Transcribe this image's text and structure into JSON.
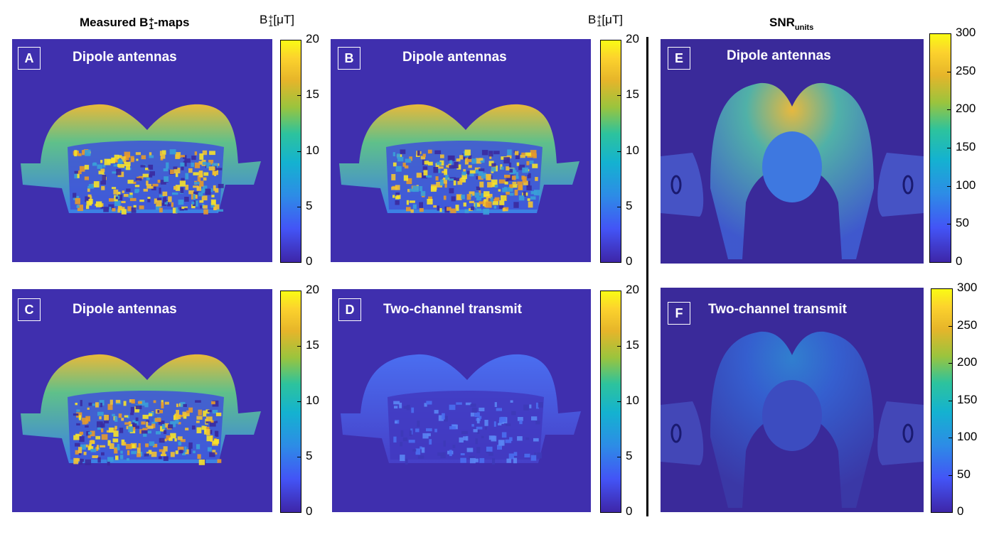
{
  "headers": {
    "left_title_main": "Measured B",
    "left_title_sup": "+",
    "left_title_sub": "1",
    "left_title_suffix": "-maps",
    "unit_main": "B",
    "unit_sup": "+",
    "unit_sub": "1",
    "unit_suffix": "[μT]",
    "snr_main": "SNR",
    "snr_sub": "units"
  },
  "chart_data": [
    {
      "type": "heatmap",
      "panel": "A",
      "title": "Dipole antennas",
      "colorbar_ticks": [
        "20",
        "15",
        "10",
        "5",
        "0"
      ],
      "colorbar_range": [
        0,
        20
      ],
      "unit": "B1+ [μT]"
    },
    {
      "type": "heatmap",
      "panel": "B",
      "title": "Dipole antennas",
      "colorbar_ticks": [
        "20",
        "15",
        "10",
        "5",
        "0"
      ],
      "colorbar_range": [
        0,
        20
      ],
      "unit": "B1+ [μT]"
    },
    {
      "type": "heatmap",
      "panel": "C",
      "title": "Dipole antennas",
      "colorbar_ticks": [
        "20",
        "15",
        "10",
        "5",
        "0"
      ],
      "colorbar_range": [
        0,
        20
      ],
      "unit": "B1+ [μT]"
    },
    {
      "type": "heatmap",
      "panel": "D",
      "title": "Two-channel transmit",
      "colorbar_ticks": [
        "20",
        "15",
        "10",
        "5",
        "0"
      ],
      "colorbar_range": [
        0,
        20
      ],
      "unit": "B1+ [μT]"
    },
    {
      "type": "heatmap",
      "panel": "E",
      "title": "Dipole antennas",
      "colorbar_ticks": [
        "300",
        "250",
        "200",
        "150",
        "100",
        "50",
        "0"
      ],
      "colorbar_range": [
        0,
        300
      ],
      "unit": "SNR units"
    },
    {
      "type": "heatmap",
      "panel": "F",
      "title": "Two-channel transmit",
      "colorbar_ticks": [
        "300",
        "250",
        "200",
        "150",
        "100",
        "50",
        "0"
      ],
      "colorbar_range": [
        0,
        300
      ],
      "unit": "SNR units"
    }
  ],
  "colors": {
    "background": "#3f2fae",
    "warm": "#f5c231",
    "mid": "#37b6b8",
    "cool": "#3c74e0"
  }
}
